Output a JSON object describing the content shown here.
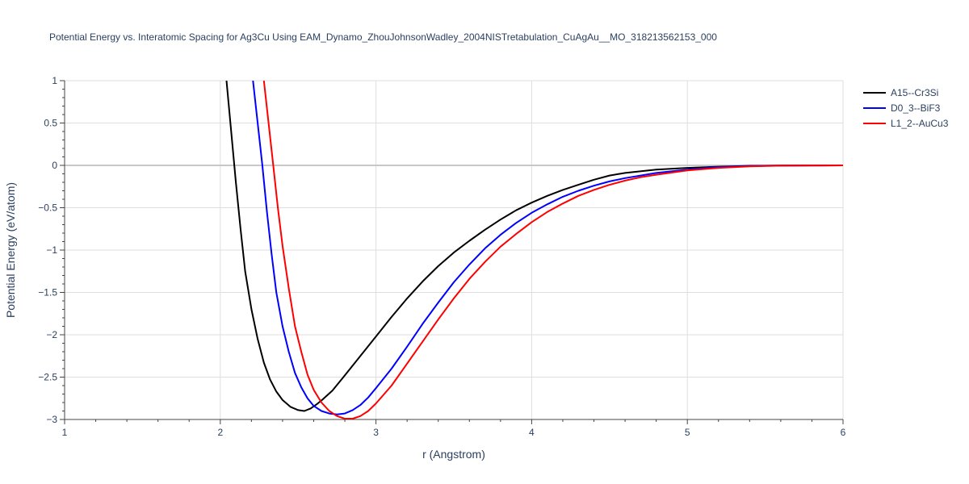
{
  "chart_data": {
    "type": "line",
    "title": "Potential Energy vs. Interatomic Spacing for Ag3Cu Using EAM_Dynamo_ZhouJohnsonWadley_2004NISTretabulation_CuAgAu__MO_318213562153_000",
    "xlabel": "r (Angstrom)",
    "ylabel": "Potential Energy (eV/atom)",
    "xlim": [
      1,
      6
    ],
    "ylim": [
      -3,
      1
    ],
    "xticks": [
      1,
      2,
      3,
      4,
      5,
      6
    ],
    "xtick_labels": [
      "1",
      "2",
      "3",
      "4",
      "5",
      "6"
    ],
    "yticks": [
      1,
      0.5,
      0,
      -0.5,
      -1,
      -1.5,
      -2,
      -2.5,
      -3
    ],
    "ytick_labels": [
      "1",
      "0.5",
      "0",
      "−0.5",
      "−1",
      "−1.5",
      "−2",
      "−2.5",
      "−3"
    ],
    "grid": true,
    "legend_position": "top-right",
    "series": [
      {
        "name": "A15--Cr3Si",
        "color": "#000000",
        "x": [
          2.04,
          2.07,
          2.1,
          2.13,
          2.16,
          2.2,
          2.24,
          2.28,
          2.32,
          2.36,
          2.4,
          2.45,
          2.5,
          2.54,
          2.58,
          2.62,
          2.66,
          2.72,
          2.8,
          2.9,
          3.0,
          3.1,
          3.2,
          3.3,
          3.4,
          3.5,
          3.6,
          3.7,
          3.8,
          3.9,
          4.0,
          4.1,
          4.2,
          4.3,
          4.4,
          4.5,
          4.6,
          4.8,
          5.0,
          5.2,
          5.4,
          5.6,
          5.8,
          6.0
        ],
        "y": [
          1.0,
          0.4,
          -0.2,
          -0.75,
          -1.25,
          -1.7,
          -2.05,
          -2.33,
          -2.53,
          -2.67,
          -2.77,
          -2.85,
          -2.89,
          -2.9,
          -2.87,
          -2.82,
          -2.76,
          -2.66,
          -2.48,
          -2.25,
          -2.02,
          -1.79,
          -1.57,
          -1.37,
          -1.19,
          -1.03,
          -0.89,
          -0.76,
          -0.64,
          -0.53,
          -0.44,
          -0.36,
          -0.29,
          -0.23,
          -0.17,
          -0.12,
          -0.09,
          -0.05,
          -0.03,
          -0.015,
          -0.006,
          -0.002,
          -0.0005,
          0.0
        ]
      },
      {
        "name": "D0_3--BiF3",
        "color": "#0000ff",
        "x": [
          2.21,
          2.24,
          2.27,
          2.3,
          2.33,
          2.36,
          2.4,
          2.44,
          2.48,
          2.52,
          2.56,
          2.6,
          2.65,
          2.7,
          2.75,
          2.8,
          2.85,
          2.9,
          2.95,
          3.0,
          3.1,
          3.2,
          3.3,
          3.4,
          3.5,
          3.6,
          3.7,
          3.8,
          3.9,
          4.0,
          4.1,
          4.2,
          4.3,
          4.4,
          4.5,
          4.6,
          4.7,
          4.8,
          5.0,
          5.2,
          5.4,
          5.6,
          5.8,
          6.0
        ],
        "y": [
          1.0,
          0.5,
          0.0,
          -0.55,
          -1.05,
          -1.5,
          -1.9,
          -2.2,
          -2.45,
          -2.62,
          -2.75,
          -2.84,
          -2.9,
          -2.93,
          -2.94,
          -2.93,
          -2.89,
          -2.83,
          -2.74,
          -2.63,
          -2.4,
          -2.14,
          -1.87,
          -1.62,
          -1.38,
          -1.17,
          -0.98,
          -0.82,
          -0.68,
          -0.56,
          -0.46,
          -0.37,
          -0.3,
          -0.24,
          -0.19,
          -0.15,
          -0.12,
          -0.09,
          -0.05,
          -0.02,
          -0.008,
          -0.003,
          -0.001,
          0.0
        ]
      },
      {
        "name": "L1_2--AuCu3",
        "color": "#ff0000",
        "x": [
          2.28,
          2.31,
          2.34,
          2.37,
          2.4,
          2.44,
          2.48,
          2.52,
          2.56,
          2.6,
          2.65,
          2.7,
          2.75,
          2.8,
          2.85,
          2.9,
          2.95,
          3.0,
          3.1,
          3.2,
          3.3,
          3.4,
          3.5,
          3.6,
          3.7,
          3.8,
          3.9,
          4.0,
          4.1,
          4.2,
          4.3,
          4.4,
          4.5,
          4.6,
          4.7,
          4.8,
          5.0,
          5.2,
          5.4,
          5.6,
          5.8,
          6.0
        ],
        "y": [
          1.0,
          0.5,
          0.0,
          -0.5,
          -0.95,
          -1.45,
          -1.9,
          -2.2,
          -2.47,
          -2.65,
          -2.8,
          -2.9,
          -2.96,
          -2.99,
          -2.99,
          -2.96,
          -2.9,
          -2.81,
          -2.6,
          -2.34,
          -2.08,
          -1.82,
          -1.57,
          -1.34,
          -1.14,
          -0.96,
          -0.81,
          -0.67,
          -0.55,
          -0.45,
          -0.36,
          -0.29,
          -0.23,
          -0.18,
          -0.14,
          -0.11,
          -0.06,
          -0.03,
          -0.012,
          -0.004,
          -0.001,
          0.0
        ]
      }
    ]
  }
}
